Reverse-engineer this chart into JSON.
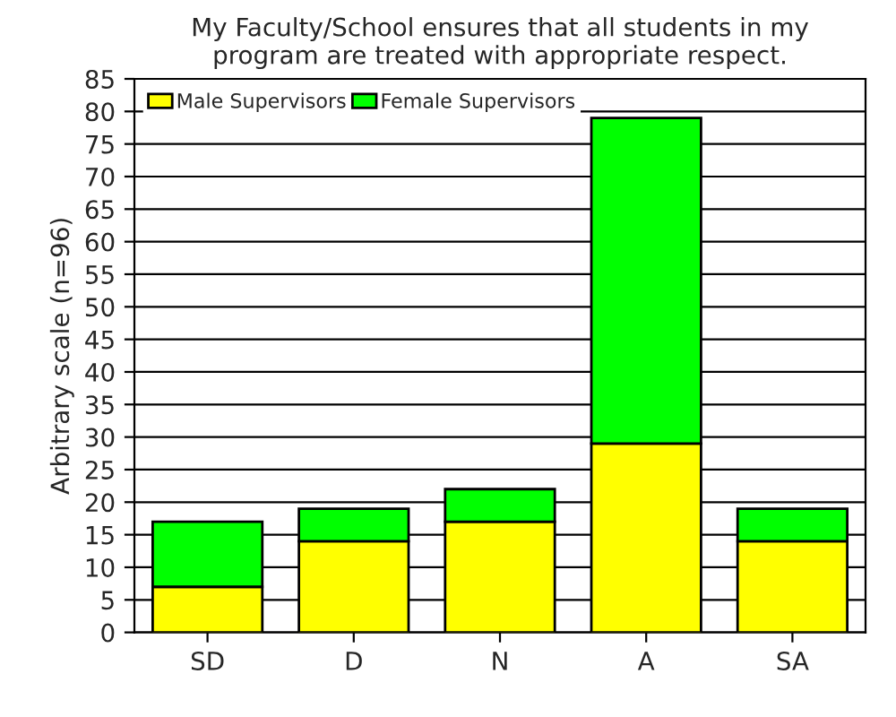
{
  "chart_data": {
    "type": "bar",
    "title": "My Faculty/School ensures that all students in my\nprogram are treated with appropriate respect.",
    "ylabel": "Arbitrary scale (n=96)",
    "categories": [
      "SD",
      "D",
      "N",
      "A",
      "SA"
    ],
    "stacked": true,
    "series": [
      {
        "name": "Male Supervisors",
        "color": "#ffff00",
        "values": [
          7,
          14,
          17,
          29,
          14
        ]
      },
      {
        "name": "Female Supervisors",
        "color": "#00ff00",
        "values": [
          10,
          5,
          5,
          50,
          5
        ]
      }
    ],
    "ylim": [
      0,
      85
    ],
    "yticks": [
      0,
      5,
      10,
      15,
      20,
      25,
      30,
      35,
      40,
      45,
      50,
      55,
      60,
      65,
      70,
      75,
      80,
      85
    ],
    "grid": "y",
    "legend": "top left"
  }
}
